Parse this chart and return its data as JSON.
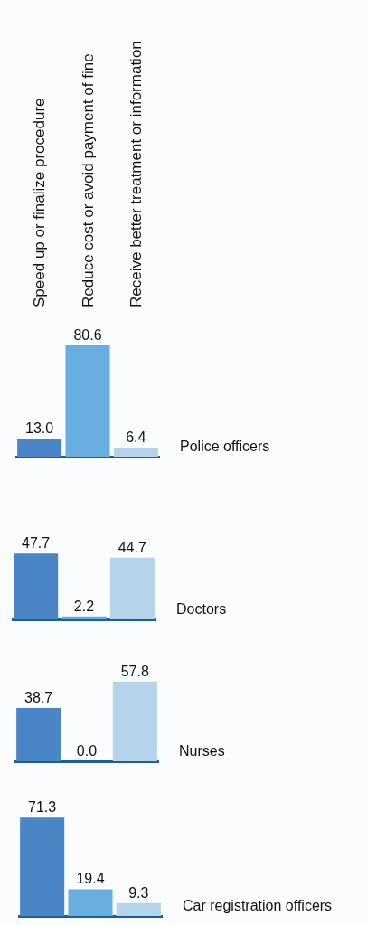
{
  "chart_data": [
    {
      "type": "bar",
      "xlabel": "Police officers",
      "categories": [
        "Speed up or finalize procedure",
        "Reduce cost or avoid payment of fine",
        "Receive better treatment or information"
      ],
      "values": [
        13.0,
        80.6,
        6.4
      ],
      "value_labels": [
        "13.0",
        "80.6",
        "6.4"
      ],
      "colors": [
        "#4a86c6",
        "#69aee0",
        "#b4d4ec"
      ]
    },
    {
      "type": "bar",
      "xlabel": "Doctors",
      "categories": [
        null,
        null,
        null
      ],
      "values": [
        47.7,
        2.2,
        44.7
      ],
      "value_labels": [
        "47.7",
        "2.2",
        "44.7"
      ],
      "colors": [
        "#4a86c6",
        "#69aee0",
        "#b4d4ec"
      ]
    },
    {
      "type": "bar",
      "xlabel": "Nurses",
      "categories": [
        null,
        null,
        null
      ],
      "values": [
        38.7,
        0.0,
        57.8
      ],
      "value_labels": [
        "38.7",
        "0.0",
        "57.8"
      ],
      "colors": [
        "#4a86c6",
        "#69aee0",
        "#b4d4ec"
      ]
    },
    {
      "type": "bar",
      "xlabel": "Car registration officers",
      "categories": [
        null,
        null,
        null
      ],
      "values": [
        71.3,
        19.4,
        9.3
      ],
      "value_labels": [
        "71.3",
        "19.4",
        "9.3"
      ],
      "colors": [
        "#4a86c6",
        "#69aee0",
        "#b4d4ec"
      ]
    }
  ]
}
